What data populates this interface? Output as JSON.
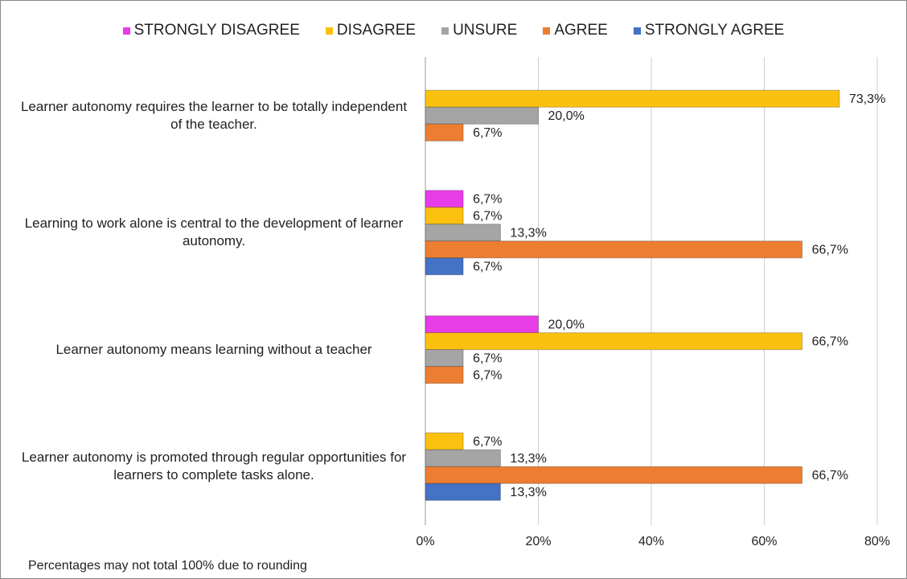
{
  "chart_data": {
    "type": "bar",
    "orientation": "horizontal",
    "categories": [
      "Learner autonomy requires the learner to be totally independent of the teacher.",
      "Learning to work alone is central to the development of learner autonomy.",
      "Learner autonomy means learning without a teacher",
      "Learner autonomy is promoted through regular opportunities for learners to complete tasks alone."
    ],
    "series": [
      {
        "name": "STRONGLY DISAGREE",
        "color": "#e83ce8",
        "values": [
          null,
          6.7,
          20.0,
          null
        ],
        "value_labels": [
          null,
          "6,7%",
          "20,0%",
          null
        ]
      },
      {
        "name": "DISAGREE",
        "color": "#fcc10f",
        "values": [
          73.3,
          6.7,
          66.7,
          6.7
        ],
        "value_labels": [
          "73,3%",
          "6,7%",
          "66,7%",
          "6,7%"
        ]
      },
      {
        "name": "UNSURE",
        "color": "#a5a5a5",
        "values": [
          20.0,
          13.3,
          6.7,
          13.3
        ],
        "value_labels": [
          "20,0%",
          "13,3%",
          "6,7%",
          "13,3%"
        ]
      },
      {
        "name": "AGREE",
        "color": "#ed7d31",
        "values": [
          6.7,
          66.7,
          6.7,
          66.7
        ],
        "value_labels": [
          "6,7%",
          "66,7%",
          "6,7%",
          "66,7%"
        ]
      },
      {
        "name": "STRONGLY AGREE",
        "color": "#4472c4",
        "values": [
          null,
          6.7,
          null,
          13.3
        ],
        "value_labels": [
          null,
          "6,7%",
          null,
          "13,3%"
        ]
      }
    ],
    "xlim": [
      0,
      80
    ],
    "xticks": [
      {
        "value": 0,
        "label": "0%"
      },
      {
        "value": 20,
        "label": "20%"
      },
      {
        "value": 40,
        "label": "40%"
      },
      {
        "value": 60,
        "label": "60%"
      },
      {
        "value": 80,
        "label": "80%"
      }
    ],
    "grid": true,
    "legend": "top",
    "note": "Percentages may not total 100% due to rounding"
  }
}
